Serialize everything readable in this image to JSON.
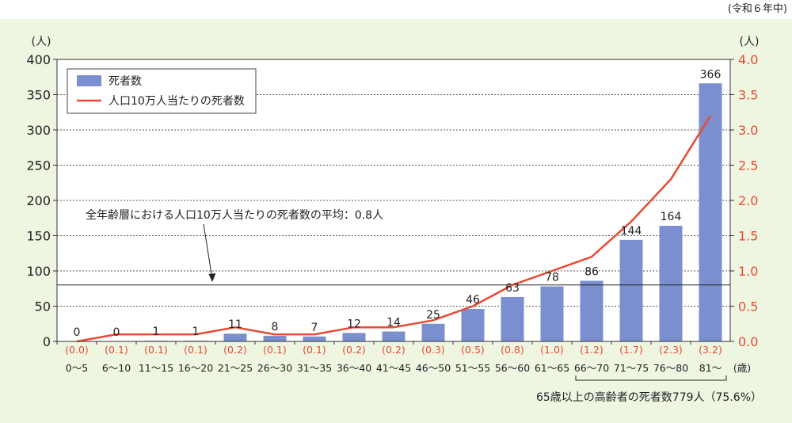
{
  "header": {
    "note": "(令和６年中)"
  },
  "chart_data": {
    "type": "bar",
    "categories": [
      "0～5",
      "6～10",
      "11～15",
      "16～20",
      "21～25",
      "26～30",
      "31～35",
      "36～40",
      "41～45",
      "46～50",
      "51～55",
      "56～60",
      "61～65",
      "66～70",
      "71～75",
      "76～80",
      "81～"
    ],
    "x_unit": "(歳)",
    "series": [
      {
        "name": "死者数",
        "type": "bar",
        "axis": "left",
        "values": [
          0,
          0,
          1,
          1,
          11,
          8,
          7,
          12,
          14,
          25,
          46,
          63,
          78,
          86,
          144,
          164,
          366
        ]
      },
      {
        "name": "人口10万人当たりの死者数",
        "type": "line",
        "axis": "right",
        "values": [
          0.0,
          0.1,
          0.1,
          0.1,
          0.2,
          0.1,
          0.1,
          0.2,
          0.2,
          0.3,
          0.5,
          0.8,
          1.0,
          1.2,
          1.7,
          2.3,
          3.2
        ],
        "labels": [
          "(0.0)",
          "(0.1)",
          "(0.1)",
          "(0.1)",
          "(0.2)",
          "(0.1)",
          "(0.1)",
          "(0.2)",
          "(0.2)",
          "(0.3)",
          "(0.5)",
          "(0.8)",
          "(1.0)",
          "(1.2)",
          "(1.7)",
          "(2.3)",
          "(3.2)"
        ]
      }
    ],
    "left_axis": {
      "unit": "(人)",
      "ylim": [
        0,
        400
      ],
      "ticks": [
        "0",
        "50",
        "100",
        "150",
        "200",
        "250",
        "300",
        "350",
        "400"
      ]
    },
    "right_axis": {
      "unit": "(人)",
      "ylim": [
        0,
        4.0
      ],
      "ticks": [
        "0.0",
        "0.5",
        "1.0",
        "1.5",
        "2.0",
        "2.5",
        "3.0",
        "3.5",
        "4.0"
      ]
    },
    "average": {
      "value": 0.8,
      "axis": "right",
      "label": "全年齢層における人口10万人当たりの死者数の平均：0.8人"
    },
    "bracket": {
      "from": "66～70",
      "to": "81～",
      "label": "65歳以上の高齢者の死者数779人（75.6%）"
    },
    "grid": "dotted horizontal",
    "legend_position": "top-left",
    "colors": {
      "bar": "#7b8fd0",
      "line": "#e84a32",
      "right_axis_text": "#e84a32",
      "background": "#eef6e2"
    }
  }
}
